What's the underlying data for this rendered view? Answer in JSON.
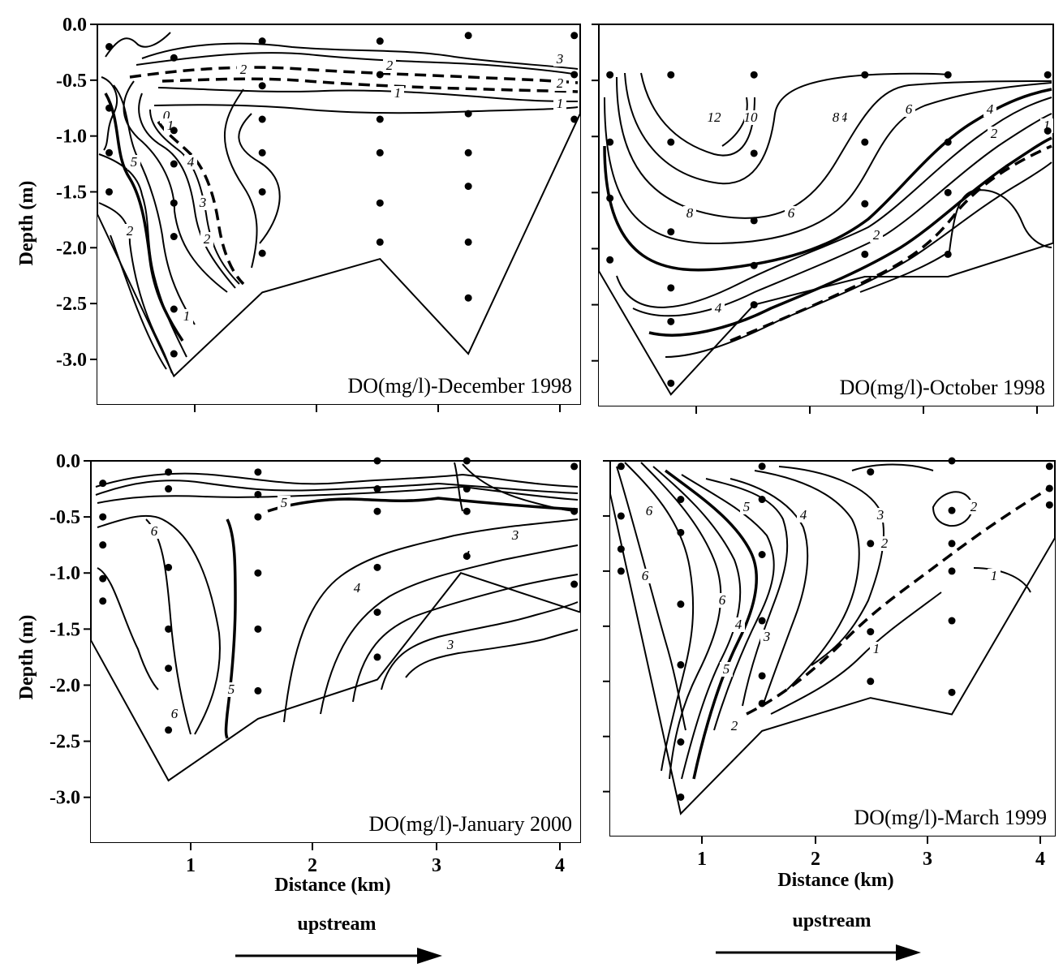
{
  "figure": {
    "left_ylabel_top": "Depth (m)",
    "left_ylabel_bottom": "Depth (m)",
    "xlabel_left": "Distance (km)",
    "xlabel_right": "Distance (km)",
    "arrow_label_left": "upstream",
    "arrow_label_right": "upstream",
    "line_color": "#000000",
    "background": "#ffffff"
  },
  "chart_data": [
    {
      "type": "contour",
      "title": "DO(mg/l)-December 1998",
      "xlabel": "",
      "ylabel": "Depth (m)",
      "xlim": [
        0.1,
        4.2
      ],
      "ylim": [
        -3.4,
        0.0
      ],
      "yticks": [
        "0.0",
        "-0.5",
        "-1.0",
        "-1.5",
        "-2.0",
        "-2.5",
        "-3.0"
      ],
      "xticks": [
        "",
        "",
        "",
        ""
      ],
      "contour_labels": [
        "3",
        "2",
        "2",
        "2",
        "1",
        "1",
        "0",
        "1",
        "2",
        "3",
        "4",
        "5",
        "2",
        "1"
      ],
      "bottom_profile": [
        [
          0.1,
          -1.7
        ],
        [
          0.75,
          -3.15
        ],
        [
          1.5,
          -2.4
        ],
        [
          2.5,
          -2.1
        ],
        [
          3.25,
          -2.95
        ],
        [
          4.2,
          -0.8
        ]
      ],
      "stations": [
        {
          "x": 0.2,
          "depths": [
            -0.2,
            -0.75,
            -1.15,
            -1.5
          ]
        },
        {
          "x": 0.75,
          "depths": [
            -0.3,
            -0.95,
            -1.25,
            -1.6,
            -1.9,
            -2.55,
            -2.95
          ]
        },
        {
          "x": 1.5,
          "depths": [
            -0.15,
            -0.55,
            -0.85,
            -1.15,
            -1.5,
            -2.05
          ]
        },
        {
          "x": 2.5,
          "depths": [
            -0.15,
            -0.45,
            -0.85,
            -1.15,
            -1.6,
            -1.95
          ]
        },
        {
          "x": 3.25,
          "depths": [
            -0.1,
            -0.8,
            -1.15,
            -1.45,
            -1.95,
            -2.45
          ]
        },
        {
          "x": 4.15,
          "depths": [
            -0.1,
            -0.45,
            -0.85
          ]
        }
      ]
    },
    {
      "type": "contour",
      "title": "DO(mg/l)-October 1998",
      "xlabel": "",
      "ylabel": "",
      "xlim": [
        0.1,
        4.2
      ],
      "ylim": [
        -3.4,
        0.0
      ],
      "yticks": [
        "",
        "",
        "",
        "",
        "",
        "",
        ""
      ],
      "xticks": [
        "",
        "",
        "",
        ""
      ],
      "contour_labels": [
        "12",
        "10",
        "8",
        "6",
        "4",
        "2",
        "8",
        "6",
        "4",
        "2",
        "4",
        "1"
      ],
      "bottom_profile": [
        [
          0.1,
          -2.2
        ],
        [
          0.75,
          -3.3
        ],
        [
          1.5,
          -2.5
        ],
        [
          2.5,
          -2.25
        ],
        [
          3.25,
          -2.25
        ],
        [
          4.2,
          -1.95
        ]
      ],
      "stations": [
        {
          "x": 0.2,
          "depths": [
            -0.45,
            -1.05,
            -1.55,
            -2.1
          ]
        },
        {
          "x": 0.75,
          "depths": [
            -0.45,
            -1.05,
            -1.85,
            -2.35,
            -2.65,
            -3.2
          ]
        },
        {
          "x": 1.5,
          "depths": [
            -0.45,
            -1.15,
            -1.75,
            -2.15,
            -2.5
          ]
        },
        {
          "x": 2.5,
          "depths": [
            -0.45,
            -1.05,
            -1.6,
            -2.05
          ]
        },
        {
          "x": 3.25,
          "depths": [
            -0.45,
            -1.05,
            -1.5,
            -2.05
          ]
        },
        {
          "x": 4.15,
          "depths": [
            -0.45,
            -0.95
          ]
        }
      ]
    },
    {
      "type": "contour",
      "title": "DO(mg/l)-January 2000",
      "xlabel": "Distance (km)",
      "ylabel": "Depth (m)",
      "xlim": [
        0.1,
        4.2
      ],
      "ylim": [
        -3.4,
        0.0
      ],
      "yticks": [
        "0.0",
        "-0.5",
        "-1.0",
        "-1.5",
        "-2.0",
        "-2.5",
        "-3.0"
      ],
      "xticks": [
        "1",
        "2",
        "3",
        "4"
      ],
      "contour_labels": [
        "6",
        "5",
        "4",
        "4",
        "3",
        "3",
        "5",
        "6"
      ],
      "bottom_profile": [
        [
          0.1,
          -1.6
        ],
        [
          0.75,
          -2.85
        ],
        [
          1.5,
          -2.3
        ],
        [
          2.5,
          -1.95
        ],
        [
          3.2,
          -1.0
        ],
        [
          4.2,
          -1.35
        ]
      ],
      "stations": [
        {
          "x": 0.2,
          "depths": [
            -0.2,
            -0.5,
            -0.75,
            -1.05,
            -1.25
          ]
        },
        {
          "x": 0.75,
          "depths": [
            -0.1,
            -0.25,
            -0.95,
            -1.5,
            -1.85,
            -2.4
          ]
        },
        {
          "x": 1.5,
          "depths": [
            -0.1,
            -0.3,
            -0.5,
            -1.0,
            -1.5,
            -2.05
          ]
        },
        {
          "x": 2.5,
          "depths": [
            0.0,
            -0.25,
            -0.45,
            -0.95,
            -1.35,
            -1.75
          ]
        },
        {
          "x": 3.25,
          "depths": [
            0.0,
            -0.25,
            -0.45,
            -0.85
          ]
        },
        {
          "x": 4.15,
          "depths": [
            -0.05,
            -0.45,
            -1.1
          ]
        }
      ]
    },
    {
      "type": "contour",
      "title": "DO(mg/l)-March 1999",
      "xlabel": "Distance (km)",
      "ylabel": "",
      "xlim": [
        0.1,
        4.2
      ],
      "ylim": [
        -3.4,
        0.0
      ],
      "yticks": [
        "",
        "",
        "",
        "",
        "",
        "",
        ""
      ],
      "xticks": [
        "1",
        "2",
        "3",
        "4"
      ],
      "contour_labels": [
        "5",
        "4",
        "6",
        "6",
        "5",
        "4",
        "3",
        "3",
        "2",
        "2",
        "1",
        "1",
        "2",
        "6"
      ],
      "bottom_profile": [
        [
          0.1,
          -0.3
        ],
        [
          0.75,
          -3.2
        ],
        [
          1.5,
          -2.45
        ],
        [
          2.5,
          -2.15
        ],
        [
          3.25,
          -2.3
        ],
        [
          4.2,
          -0.7
        ]
      ],
      "stations": [
        {
          "x": 0.2,
          "depths": [
            -0.05,
            -0.5,
            -0.8,
            -1.0
          ]
        },
        {
          "x": 0.75,
          "depths": [
            -0.35,
            -0.65,
            -1.3,
            -1.85,
            -2.55,
            -3.05
          ]
        },
        {
          "x": 1.5,
          "depths": [
            -0.05,
            -0.35,
            -0.85,
            -1.45,
            -1.95,
            -2.2
          ]
        },
        {
          "x": 2.5,
          "depths": [
            -0.1,
            -0.75,
            -1.55,
            -2.0
          ]
        },
        {
          "x": 3.25,
          "depths": [
            0.0,
            -0.45,
            -0.75,
            -1.0,
            -1.45,
            -2.1
          ]
        },
        {
          "x": 4.15,
          "depths": [
            -0.05,
            -0.25,
            -0.4
          ]
        }
      ]
    }
  ]
}
